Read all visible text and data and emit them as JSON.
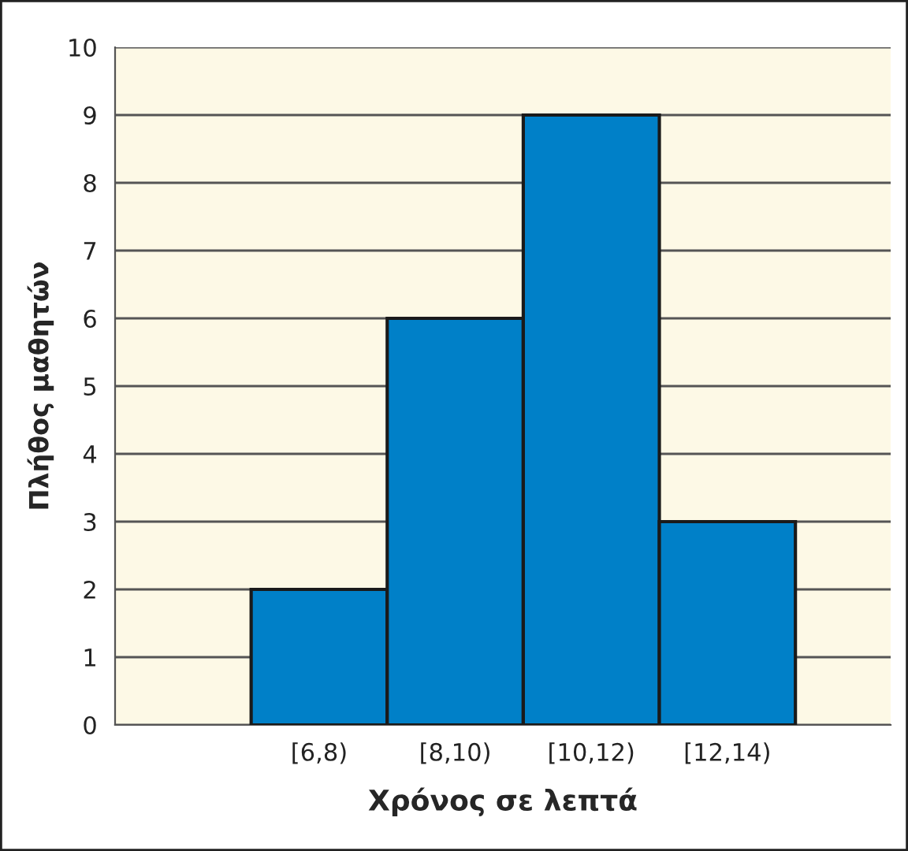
{
  "chart_data": {
    "type": "bar",
    "xlabel": "Χρόνος σε λεπτά",
    "ylabel": "Πλήθος μαθητών",
    "categories": [
      null,
      "[6,8)",
      "[8,10)",
      "[10,12)",
      "[12,14)"
    ],
    "values": [
      null,
      2,
      6,
      9,
      3
    ],
    "color": "#0080c8",
    "ylim": [
      0,
      10
    ],
    "yticks": [
      0,
      1,
      2,
      3,
      4,
      5,
      6,
      7,
      8,
      9,
      10
    ],
    "grid": "y"
  }
}
